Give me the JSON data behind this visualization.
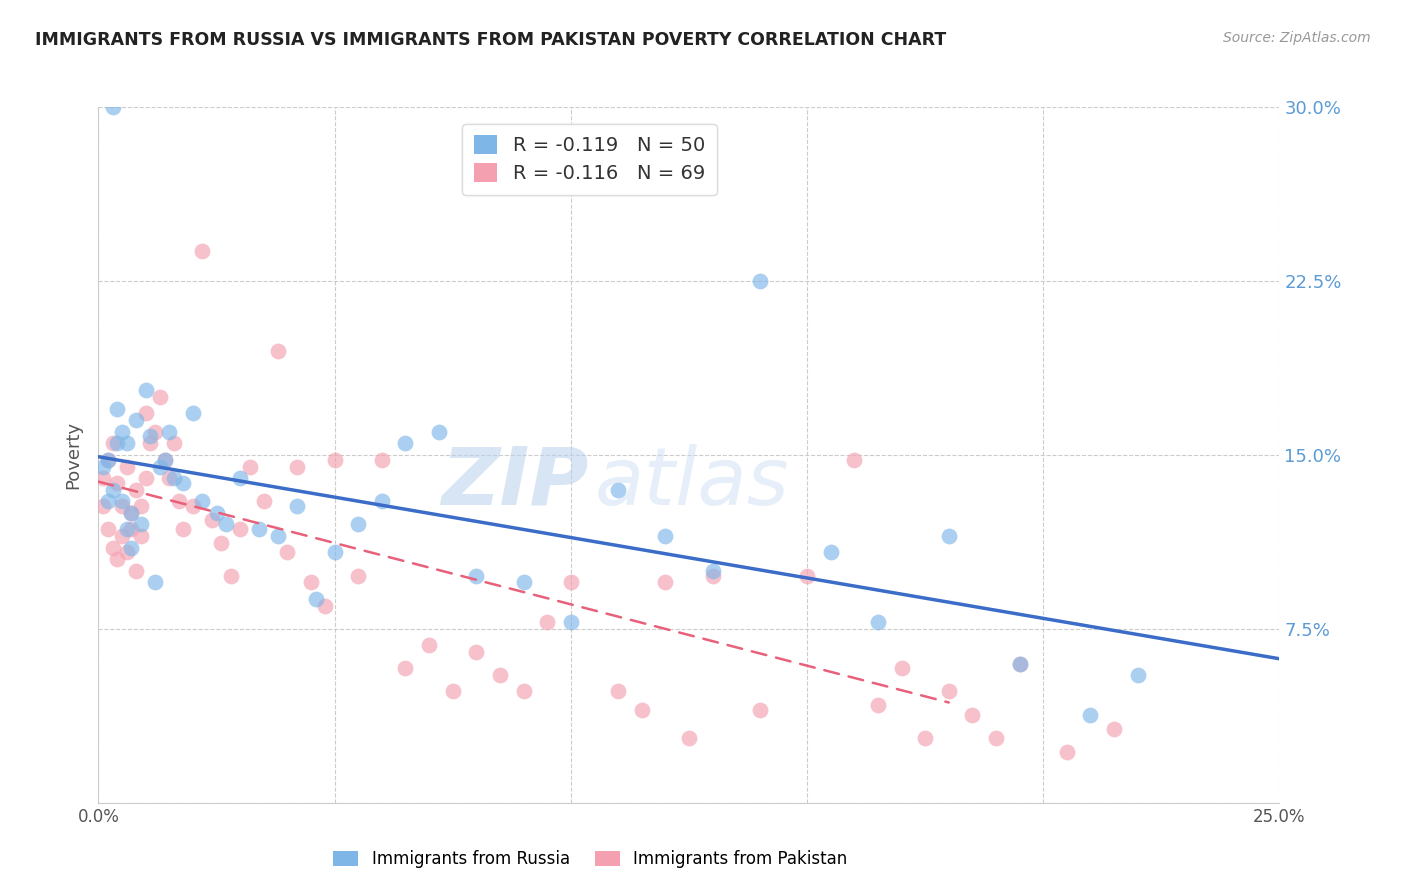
{
  "title": "IMMIGRANTS FROM RUSSIA VS IMMIGRANTS FROM PAKISTAN POVERTY CORRELATION CHART",
  "source": "Source: ZipAtlas.com",
  "ylabel": "Poverty",
  "xlim": [
    0.0,
    0.25
  ],
  "ylim": [
    0.0,
    0.3
  ],
  "xticks": [
    0.0,
    0.05,
    0.1,
    0.15,
    0.2,
    0.25
  ],
  "xticklabels": [
    "0.0%",
    "",
    "",
    "",
    "",
    "25.0%"
  ],
  "yticks": [
    0.0,
    0.075,
    0.15,
    0.225,
    0.3
  ],
  "russia_R": -0.119,
  "russia_N": 50,
  "pakistan_R": -0.116,
  "pakistan_N": 69,
  "russia_color": "#7EB6E8",
  "pakistan_color": "#F4A0B0",
  "russia_line_color": "#3A6CC8",
  "pakistan_line_color": "#E8607A",
  "watermark_zip": "ZIP",
  "watermark_atlas": "atlas",
  "legend_label_russia": "Immigrants from Russia",
  "legend_label_pakistan": "Immigrants from Pakistan",
  "russia_x": [
    0.001,
    0.002,
    0.002,
    0.003,
    0.003,
    0.004,
    0.004,
    0.005,
    0.005,
    0.006,
    0.006,
    0.007,
    0.007,
    0.008,
    0.009,
    0.01,
    0.011,
    0.012,
    0.013,
    0.014,
    0.015,
    0.016,
    0.018,
    0.02,
    0.022,
    0.025,
    0.027,
    0.03,
    0.034,
    0.038,
    0.042,
    0.046,
    0.05,
    0.055,
    0.06,
    0.065,
    0.072,
    0.08,
    0.09,
    0.1,
    0.11,
    0.12,
    0.13,
    0.14,
    0.155,
    0.165,
    0.18,
    0.195,
    0.21,
    0.22
  ],
  "russia_y": [
    0.145,
    0.148,
    0.13,
    0.3,
    0.135,
    0.155,
    0.17,
    0.16,
    0.13,
    0.155,
    0.118,
    0.125,
    0.11,
    0.165,
    0.12,
    0.178,
    0.158,
    0.095,
    0.145,
    0.148,
    0.16,
    0.14,
    0.138,
    0.168,
    0.13,
    0.125,
    0.12,
    0.14,
    0.118,
    0.115,
    0.128,
    0.088,
    0.108,
    0.12,
    0.13,
    0.155,
    0.16,
    0.098,
    0.095,
    0.078,
    0.135,
    0.115,
    0.1,
    0.225,
    0.108,
    0.078,
    0.115,
    0.06,
    0.038,
    0.055
  ],
  "pakistan_x": [
    0.001,
    0.001,
    0.002,
    0.002,
    0.003,
    0.003,
    0.004,
    0.004,
    0.005,
    0.005,
    0.006,
    0.006,
    0.007,
    0.007,
    0.008,
    0.008,
    0.009,
    0.009,
    0.01,
    0.01,
    0.011,
    0.012,
    0.013,
    0.014,
    0.015,
    0.016,
    0.017,
    0.018,
    0.02,
    0.022,
    0.024,
    0.026,
    0.028,
    0.03,
    0.032,
    0.035,
    0.038,
    0.04,
    0.042,
    0.045,
    0.048,
    0.05,
    0.055,
    0.06,
    0.065,
    0.07,
    0.075,
    0.08,
    0.085,
    0.09,
    0.095,
    0.1,
    0.11,
    0.115,
    0.12,
    0.125,
    0.13,
    0.14,
    0.15,
    0.16,
    0.165,
    0.17,
    0.175,
    0.18,
    0.185,
    0.19,
    0.195,
    0.205,
    0.215
  ],
  "pakistan_y": [
    0.14,
    0.128,
    0.148,
    0.118,
    0.155,
    0.11,
    0.138,
    0.105,
    0.128,
    0.115,
    0.145,
    0.108,
    0.125,
    0.118,
    0.135,
    0.1,
    0.128,
    0.115,
    0.168,
    0.14,
    0.155,
    0.16,
    0.175,
    0.148,
    0.14,
    0.155,
    0.13,
    0.118,
    0.128,
    0.238,
    0.122,
    0.112,
    0.098,
    0.118,
    0.145,
    0.13,
    0.195,
    0.108,
    0.145,
    0.095,
    0.085,
    0.148,
    0.098,
    0.148,
    0.058,
    0.068,
    0.048,
    0.065,
    0.055,
    0.048,
    0.078,
    0.095,
    0.048,
    0.04,
    0.095,
    0.028,
    0.098,
    0.04,
    0.098,
    0.148,
    0.042,
    0.058,
    0.028,
    0.048,
    0.038,
    0.028,
    0.06,
    0.022,
    0.032
  ]
}
